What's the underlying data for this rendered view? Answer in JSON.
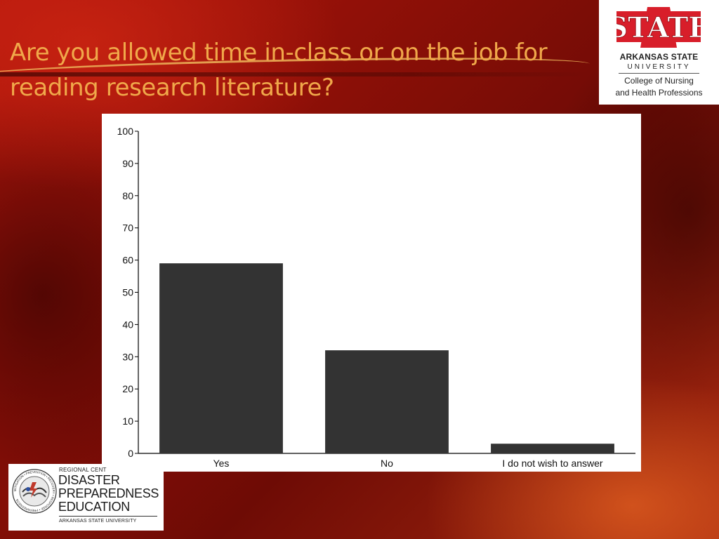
{
  "slide": {
    "title": "Are you allowed time in-class or on the job for reading research literature?"
  },
  "logo_right": {
    "wordmark": "STATE",
    "university": "ARKANSAS STATE",
    "university_sub": "UNIVERSITY",
    "college_line1": "College of Nursing",
    "college_line2": "and Health Professions",
    "brand_color": "#d81e2a"
  },
  "logo_left": {
    "regional": "REGIONAL CENT",
    "line1": "DISASTER",
    "line2": "PREPAREDNESS",
    "line3": "EDUCATION",
    "institution": "ARKANSAS STATE UNIVERSITY",
    "seal_icon": "disaster-seal-icon",
    "seal_ring_text": "MITIGATION • PREVENTION • RECOVERY • RESPONSE • PREPAREDNESS"
  },
  "chart_data": {
    "type": "bar",
    "categories": [
      "Yes",
      "No",
      "I do not wish to answer"
    ],
    "values": [
      59,
      32,
      3
    ],
    "title": "",
    "xlabel": "",
    "ylabel": "",
    "ylim": [
      0,
      100
    ],
    "yticks": [
      "0",
      "10",
      "20",
      "30",
      "40",
      "50",
      "60",
      "70",
      "80",
      "90",
      "100"
    ],
    "grid": false,
    "bar_color": "#333333"
  }
}
